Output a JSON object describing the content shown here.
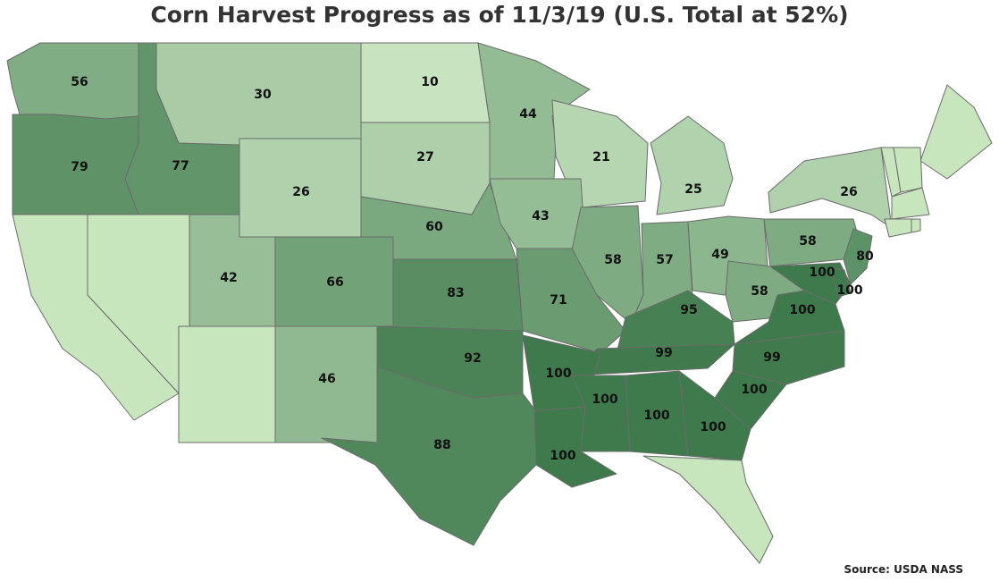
{
  "title": "Corn Harvest Progress as of 11/3/19 (U.S. Total at 52%)",
  "source": "Source: USDA NASS",
  "color_scale": {
    "low": "#d6efcc",
    "high": "#3f7a4c",
    "min": 0,
    "max": 100
  },
  "states": [
    {
      "id": "WA",
      "value": 56
    },
    {
      "id": "OR",
      "value": 79
    },
    {
      "id": "ID",
      "value": 77
    },
    {
      "id": "MT",
      "value": 30
    },
    {
      "id": "ND",
      "value": 10
    },
    {
      "id": "MN",
      "value": 44
    },
    {
      "id": "SD",
      "value": 27
    },
    {
      "id": "WY",
      "value": 26
    },
    {
      "id": "WI",
      "value": 21
    },
    {
      "id": "MI",
      "value": 25
    },
    {
      "id": "NE",
      "value": 60
    },
    {
      "id": "IA",
      "value": 43
    },
    {
      "id": "NY",
      "value": 26
    },
    {
      "id": "UT",
      "value": 42
    },
    {
      "id": "CO",
      "value": 66
    },
    {
      "id": "IL",
      "value": 58
    },
    {
      "id": "IN",
      "value": 57
    },
    {
      "id": "OH",
      "value": 49
    },
    {
      "id": "PA",
      "value": 58
    },
    {
      "id": "NJ",
      "value": 80
    },
    {
      "id": "MD",
      "value": 100
    },
    {
      "id": "DE",
      "value": 100
    },
    {
      "id": "KS",
      "value": 83
    },
    {
      "id": "MO",
      "value": 71
    },
    {
      "id": "WV",
      "value": 58
    },
    {
      "id": "VA",
      "value": 100
    },
    {
      "id": "KY",
      "value": 95
    },
    {
      "id": "NM",
      "value": 46
    },
    {
      "id": "OK",
      "value": 92
    },
    {
      "id": "TN",
      "value": 99
    },
    {
      "id": "NC",
      "value": 99
    },
    {
      "id": "AR",
      "value": 100
    },
    {
      "id": "SC",
      "value": 100
    },
    {
      "id": "MS",
      "value": 100
    },
    {
      "id": "AL",
      "value": 100
    },
    {
      "id": "GA",
      "value": 100
    },
    {
      "id": "TX",
      "value": 88
    },
    {
      "id": "LA",
      "value": 100
    },
    {
      "id": "CA",
      "value": null
    },
    {
      "id": "NV",
      "value": null
    },
    {
      "id": "AZ",
      "value": null
    },
    {
      "id": "FL",
      "value": null
    },
    {
      "id": "ME",
      "value": null
    },
    {
      "id": "VT",
      "value": null
    },
    {
      "id": "NH",
      "value": null
    },
    {
      "id": "MA",
      "value": null
    },
    {
      "id": "CT",
      "value": null
    },
    {
      "id": "RI",
      "value": null
    }
  ]
}
